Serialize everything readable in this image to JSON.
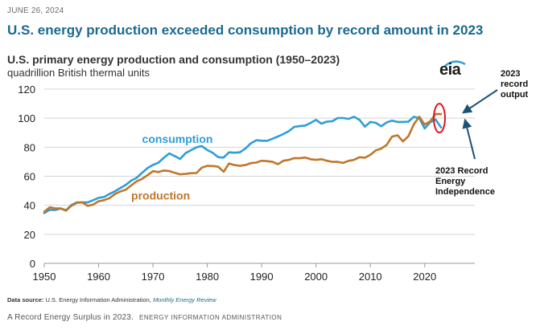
{
  "page": {
    "date": "JUNE 26, 2024",
    "headline": "U.S. energy production exceeded consumption by record amount in 2023",
    "logo_text": "eia",
    "source_label": "Data source:",
    "source_text": "U.S. Energy Information Administration,",
    "source_ref": "Monthly Energy Review",
    "caption": "A Record Energy Surplus in 2023.",
    "caption_credit": "ENERGY INFORMATION ADMINISTRATION"
  },
  "annotations": {
    "record_output": [
      "2023",
      "record",
      "output"
    ],
    "record_independence": [
      "2023 Record",
      "Energy",
      "Independence"
    ],
    "arrow_color": "#1a5276",
    "circle_color": "#e0141e"
  },
  "chart_data": {
    "type": "line",
    "title": "U.S. primary energy production and consumption (1950–2023)",
    "subtitle": "quadrillion British thermal units",
    "xlim": [
      1950,
      2023
    ],
    "ylim": [
      0,
      120
    ],
    "x_ticks": [
      1950,
      1960,
      1970,
      1980,
      1990,
      2000,
      2010,
      2020
    ],
    "y_ticks": [
      0,
      20,
      40,
      60,
      80,
      100,
      120
    ],
    "grid": "horizontal",
    "x": [
      1950,
      1951,
      1952,
      1953,
      1954,
      1955,
      1956,
      1957,
      1958,
      1959,
      1960,
      1961,
      1962,
      1963,
      1964,
      1965,
      1966,
      1967,
      1968,
      1969,
      1970,
      1971,
      1972,
      1973,
      1974,
      1975,
      1976,
      1977,
      1978,
      1979,
      1980,
      1981,
      1982,
      1983,
      1984,
      1985,
      1986,
      1987,
      1988,
      1989,
      1990,
      1991,
      1992,
      1993,
      1994,
      1995,
      1996,
      1997,
      1998,
      1999,
      2000,
      2001,
      2002,
      2003,
      2004,
      2005,
      2006,
      2007,
      2008,
      2009,
      2010,
      2011,
      2012,
      2013,
      2014,
      2015,
      2016,
      2017,
      2018,
      2019,
      2020,
      2021,
      2022,
      2023
    ],
    "series": [
      {
        "name": "consumption",
        "color": "#2e9ed6",
        "values": [
          34.6,
          36.9,
          36.7,
          37.7,
          36.6,
          40.2,
          42.0,
          42.0,
          42.0,
          43.5,
          45.1,
          45.7,
          47.8,
          49.6,
          51.8,
          54.0,
          57.0,
          58.9,
          62.4,
          65.6,
          67.8,
          69.3,
          72.7,
          75.7,
          73.9,
          71.9,
          75.9,
          77.9,
          79.9,
          80.8,
          78.0,
          76.1,
          73.1,
          72.9,
          76.5,
          76.2,
          76.5,
          79.0,
          82.6,
          84.8,
          84.5,
          84.4,
          85.8,
          87.4,
          89.1,
          91.0,
          94.0,
          94.5,
          94.9,
          96.7,
          98.8,
          96.2,
          97.6,
          97.9,
          100.1,
          100.1,
          99.5,
          101.0,
          98.9,
          94.1,
          97.4,
          96.8,
          94.4,
          97.1,
          98.3,
          97.4,
          97.4,
          97.6,
          101.0,
          100.0,
          92.9,
          97.1,
          99.1,
          93.6
        ]
      },
      {
        "name": "production",
        "color": "#c0762a",
        "values": [
          35.5,
          38.6,
          37.9,
          37.9,
          36.3,
          39.7,
          41.7,
          42.0,
          39.6,
          40.5,
          42.8,
          43.5,
          44.9,
          47.7,
          49.5,
          50.7,
          53.7,
          56.5,
          58.2,
          60.7,
          63.5,
          62.9,
          63.9,
          63.6,
          62.4,
          61.3,
          61.6,
          62.1,
          62.2,
          65.9,
          67.2,
          67.0,
          66.6,
          63.1,
          68.8,
          67.7,
          67.2,
          67.7,
          69.0,
          69.4,
          70.7,
          70.4,
          69.9,
          68.3,
          70.7,
          71.2,
          72.5,
          72.4,
          72.9,
          71.7,
          71.3,
          71.7,
          70.7,
          69.9,
          69.9,
          69.2,
          70.6,
          71.3,
          73.1,
          72.8,
          74.7,
          77.8,
          79.0,
          81.6,
          87.3,
          88.2,
          84.0,
          87.6,
          95.7,
          101.0,
          95.6,
          97.8,
          102.8,
          102.8
        ]
      }
    ]
  }
}
